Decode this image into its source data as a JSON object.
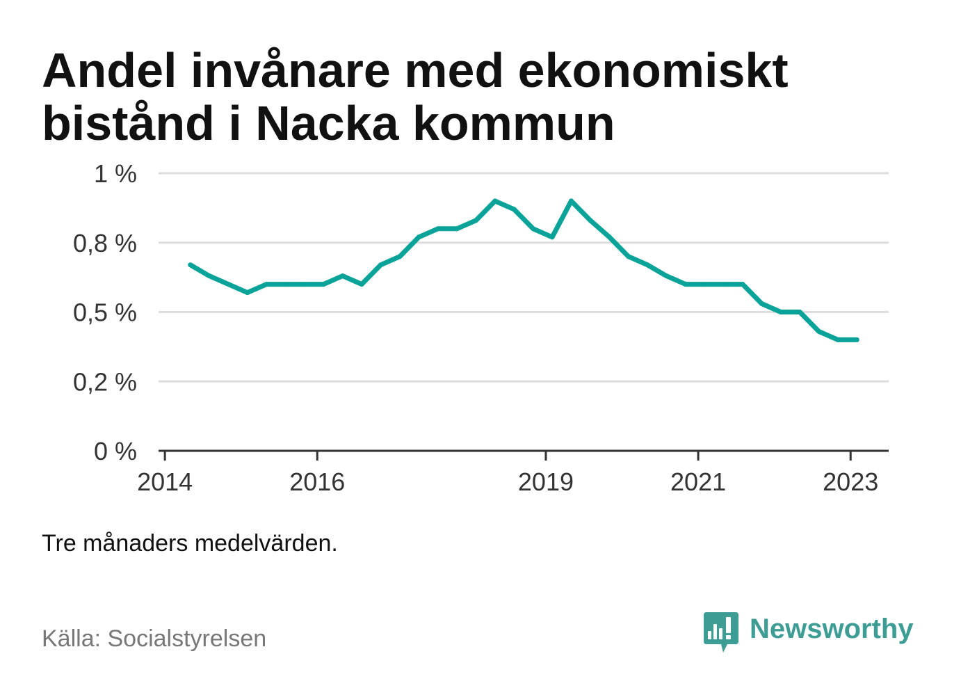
{
  "colors": {
    "line": "#0aa39a",
    "grid": "#dddddd",
    "axis": "#333333",
    "tick_text": "#333333",
    "text": "#111111",
    "muted": "#777777",
    "brand": "#3d9d95"
  },
  "note": "Tre månaders medelvärden.",
  "source": "Källa: Socialstyrelsen",
  "brand": {
    "name": "Newsworthy",
    "icon": "newsworthy-logo-icon"
  },
  "chart_data": {
    "type": "line",
    "title": "Andel invånare med ekonomiskt bistånd i Nacka kommun",
    "x": [
      "2014-05",
      "2014-08",
      "2014-11",
      "2015-02",
      "2015-05",
      "2015-08",
      "2015-11",
      "2016-02",
      "2016-05",
      "2016-08",
      "2016-11",
      "2017-02",
      "2017-05",
      "2017-08",
      "2017-11",
      "2018-02",
      "2018-05",
      "2018-08",
      "2018-11",
      "2019-02",
      "2019-05",
      "2019-08",
      "2019-11",
      "2020-02",
      "2020-05",
      "2020-08",
      "2020-11",
      "2021-02",
      "2021-05",
      "2021-08",
      "2021-11",
      "2022-02",
      "2022-05",
      "2022-08",
      "2022-11",
      "2023-02"
    ],
    "series": [
      {
        "values": [
          0.67,
          0.63,
          0.6,
          0.57,
          0.6,
          0.6,
          0.6,
          0.6,
          0.63,
          0.6,
          0.67,
          0.7,
          0.77,
          0.8,
          0.8,
          0.83,
          0.9,
          0.87,
          0.8,
          0.77,
          0.9,
          0.83,
          0.77,
          0.7,
          0.67,
          0.63,
          0.6,
          0.6,
          0.6,
          0.6,
          0.53,
          0.5,
          0.5,
          0.43,
          0.4,
          0.4
        ]
      }
    ],
    "xlim": [
      "2013-12",
      "2023-07"
    ],
    "ylim": [
      0,
      1
    ],
    "xticks": [
      "2014",
      "2016",
      "2019",
      "2021",
      "2023"
    ],
    "yticks": [
      0,
      0.25,
      0.5,
      0.75,
      1
    ],
    "ytick_labels": [
      "0 %",
      "0,2 %",
      "0,5 %",
      "0,8 %",
      "1 %"
    ],
    "grid": true
  }
}
